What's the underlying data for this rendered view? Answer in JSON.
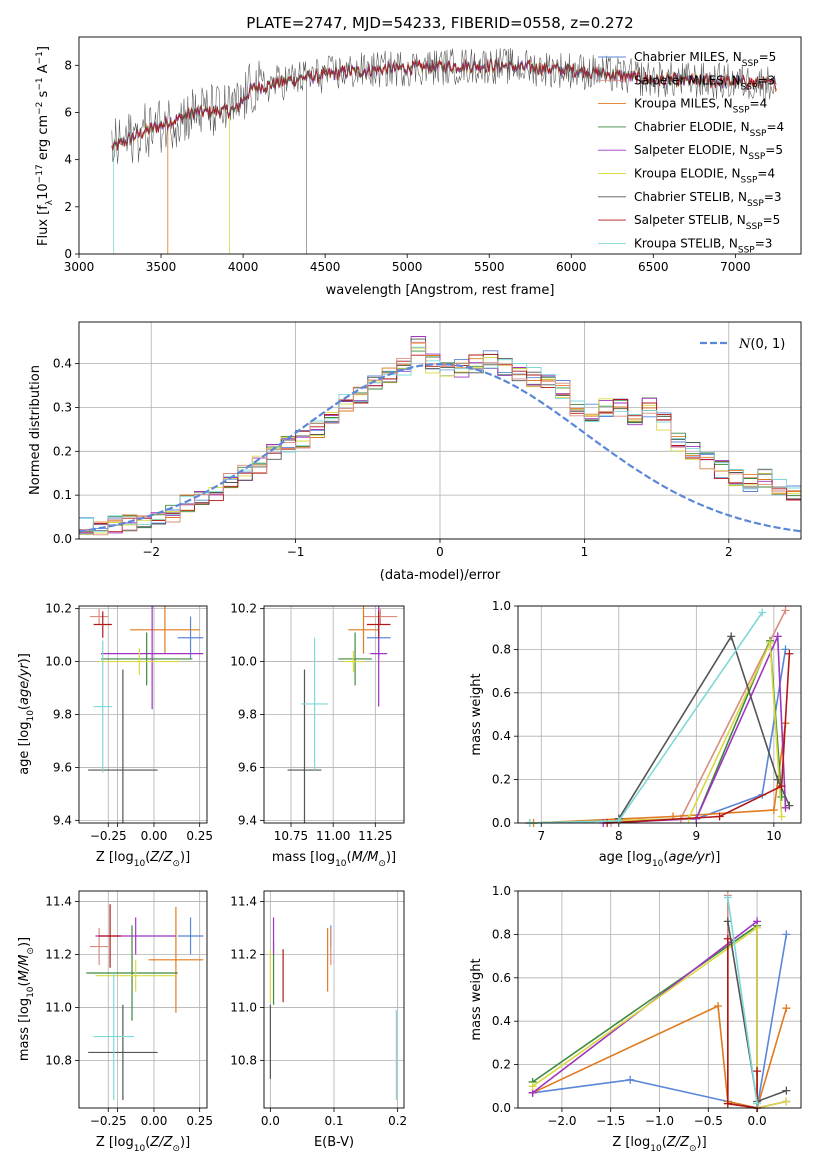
{
  "colors": {
    "chabrier_miles": "#5b87d8",
    "salpeter_miles": "#d98d80",
    "kroupa_miles": "#e07a1f",
    "chabrier_elodie": "#3d8a3d",
    "salpeter_elodie": "#a035c2",
    "kroupa_elodie": "#d9d941",
    "chabrier_stelib": "#555555",
    "salpeter_stelib": "#b01818",
    "kroupa_stelib": "#7fd8d8",
    "gaussian": "#5b87d8"
  },
  "chart_data": [
    {
      "id": "spectrum",
      "type": "line",
      "title": "PLATE=2747, MJD=54233, FIBERID=0558, z=0.272",
      "xlabel": "wavelength [Angstrom, rest frame]",
      "ylabel_parts": {
        "pre": "Flux [f",
        "sub": "λ",
        "mid": "10",
        "sup1": "−17",
        "post": " erg cm",
        "sup2": "−2",
        "mid2": " s",
        "sup3": "−1",
        "end": " A",
        "sup4": "−1",
        "close": "]"
      },
      "xlim": [
        3000,
        7400
      ],
      "ylim": [
        0,
        9.2
      ],
      "xticks": [
        3000,
        3500,
        4000,
        4500,
        5000,
        5500,
        6000,
        6500,
        7000
      ],
      "yticks": [
        0,
        2,
        4,
        6,
        8
      ],
      "grid": false,
      "legend": "top-right",
      "legend_entries": [
        {
          "label": "Chabrier MILES, N",
          "sub": "SSP",
          "val": "=5",
          "color_key": "chabrier_miles"
        },
        {
          "label": "Salpeter MILES, N",
          "sub": "SSP",
          "val": "=3",
          "color_key": "salpeter_miles"
        },
        {
          "label": "Kroupa MILES, N",
          "sub": "SSP",
          "val": "=4",
          "color_key": "kroupa_miles"
        },
        {
          "label": "Chabrier ELODIE, N",
          "sub": "SSP",
          "val": "=4",
          "color_key": "chabrier_elodie"
        },
        {
          "label": "Salpeter ELODIE, N",
          "sub": "SSP",
          "val": "=5",
          "color_key": "salpeter_elodie"
        },
        {
          "label": "Kroupa ELODIE, N",
          "sub": "SSP",
          "val": "=4",
          "color_key": "kroupa_elodie"
        },
        {
          "label": "Chabrier STELIB, N",
          "sub": "SSP",
          "val": "=3",
          "color_key": "chabrier_stelib"
        },
        {
          "label": "Salpeter STELIB, N",
          "sub": "SSP",
          "val": "=5",
          "color_key": "salpeter_stelib"
        },
        {
          "label": "Kroupa STELIB, N",
          "sub": "SSP",
          "val": "=3",
          "color_key": "kroupa_stelib"
        }
      ],
      "data_range": {
        "start": 3200,
        "end": 7250
      },
      "continuum": [
        [
          3200,
          4.5
        ],
        [
          3400,
          5.2
        ],
        [
          3700,
          6.0
        ],
        [
          3950,
          6.1
        ],
        [
          4050,
          7.0
        ],
        [
          4300,
          7.4
        ],
        [
          4600,
          7.7
        ],
        [
          5000,
          7.9
        ],
        [
          5500,
          8.0
        ],
        [
          6000,
          7.8
        ],
        [
          6500,
          7.4
        ],
        [
          7000,
          7.3
        ],
        [
          7250,
          7.2
        ]
      ],
      "dropouts": [
        {
          "series": "kroupa_stelib",
          "x": 3210
        },
        {
          "series": "kroupa_miles",
          "x": 3540
        },
        {
          "series": "kroupa_elodie",
          "x": 3915
        },
        {
          "series": "chabrier_stelib",
          "x": 4385
        },
        {
          "series": "kroupa_elodie",
          "x": 6790
        }
      ]
    },
    {
      "id": "residuals",
      "type": "histogram",
      "xlabel": "(data-model)/error",
      "ylabel": "Normed distribution",
      "xlim": [
        -2.5,
        2.5
      ],
      "ylim": [
        0,
        0.495
      ],
      "xticks": [
        -2,
        -1,
        0,
        1,
        2
      ],
      "yticks": [
        0.0,
        0.1,
        0.2,
        0.3,
        0.4
      ],
      "grid": true,
      "legend": "top-right",
      "legend_label": "N(0,1)",
      "bin_width": 0.1,
      "bin_start": -2.5,
      "base_heights": [
        0.03,
        0.03,
        0.035,
        0.04,
        0.045,
        0.05,
        0.06,
        0.08,
        0.09,
        0.11,
        0.13,
        0.15,
        0.17,
        0.2,
        0.22,
        0.23,
        0.25,
        0.27,
        0.31,
        0.33,
        0.35,
        0.37,
        0.39,
        0.44,
        0.4,
        0.38,
        0.39,
        0.4,
        0.41,
        0.39,
        0.38,
        0.37,
        0.36,
        0.34,
        0.3,
        0.29,
        0.3,
        0.3,
        0.28,
        0.3,
        0.27,
        0.22,
        0.2,
        0.18,
        0.16,
        0.14,
        0.13,
        0.14,
        0.12,
        0.11,
        0.09
      ]
    },
    {
      "id": "age_vs_Z",
      "type": "errorbar",
      "xlabel": "Z [log10(Z/Z⊙)]",
      "ylabel": "age  [log10(age/yr)]",
      "xlim": [
        -0.41,
        0.29
      ],
      "ylim": [
        9.39,
        10.21
      ],
      "xticks": [
        -0.25,
        -0.2,
        0.0,
        0.25
      ],
      "xticklabels": [
        "−0.25",
        "",
        "0.00",
        "0.25"
      ],
      "ytick_values": [
        9.4,
        9.6,
        9.8,
        10.0,
        10.2
      ],
      "grid": true,
      "points": [
        {
          "s": "chabrier_miles",
          "x": 0.2,
          "xe": 0.07,
          "y": 10.09,
          "ye": 0.08
        },
        {
          "s": "salpeter_miles",
          "x": -0.3,
          "xe": 0.05,
          "y": 10.17,
          "ye": 0.03
        },
        {
          "s": "kroupa_miles",
          "x": 0.06,
          "xe": 0.19,
          "y": 10.12,
          "ye": 0.09
        },
        {
          "s": "chabrier_elodie",
          "x": -0.04,
          "xe": 0.25,
          "y": 10.01,
          "ye": 0.1
        },
        {
          "s": "salpeter_elodie",
          "x": -0.01,
          "xe": 0.28,
          "y": 10.03,
          "ye": 0.21
        },
        {
          "s": "kroupa_elodie",
          "x": -0.08,
          "xe": 0.22,
          "y": 10.0,
          "ye": 0.05
        },
        {
          "s": "chabrier_stelib",
          "x": -0.17,
          "xe": 0.19,
          "y": 9.59,
          "ye": 0.38
        },
        {
          "s": "salpeter_stelib",
          "x": -0.28,
          "xe": 0.05,
          "y": 10.14,
          "ye": 0.05
        },
        {
          "s": "kroupa_stelib",
          "x": -0.28,
          "xe": 0.05,
          "y": 9.83,
          "ye": 0.25
        }
      ]
    },
    {
      "id": "age_vs_mass",
      "type": "errorbar",
      "xlabel": "mass [log10(M/M⊙)]",
      "ylabel": "",
      "xlim": [
        10.59,
        11.42
      ],
      "ylim": [
        9.39,
        10.21
      ],
      "xticks": [
        10.75,
        11.0,
        11.25
      ],
      "xticklabels": [
        "10.75",
        "11.00",
        "11.25"
      ],
      "ytick_values": [
        9.4,
        9.6,
        9.8,
        10.0,
        10.2
      ],
      "grid": true,
      "points": [
        {
          "s": "chabrier_miles",
          "x": 11.27,
          "xe": 0.07,
          "y": 10.09,
          "ye": 0.07
        },
        {
          "s": "salpeter_miles",
          "x": 11.28,
          "xe": 0.1,
          "y": 10.17,
          "ye": 0.03
        },
        {
          "s": "kroupa_miles",
          "x": 11.18,
          "xe": 0.09,
          "y": 10.12,
          "ye": 0.09
        },
        {
          "s": "chabrier_elodie",
          "x": 11.13,
          "xe": 0.1,
          "y": 10.01,
          "ye": 0.1
        },
        {
          "s": "salpeter_elodie",
          "x": 11.27,
          "xe": 0.05,
          "y": 10.03,
          "ye": 0.2
        },
        {
          "s": "kroupa_elodie",
          "x": 11.12,
          "xe": 0.06,
          "y": 10.0,
          "ye": 0.04
        },
        {
          "s": "chabrier_stelib",
          "x": 10.83,
          "xe": 0.1,
          "y": 9.59,
          "ye": 0.38
        },
        {
          "s": "salpeter_stelib",
          "x": 11.27,
          "xe": 0.07,
          "y": 10.14,
          "ye": 0.05
        },
        {
          "s": "kroupa_stelib",
          "x": 10.89,
          "xe": 0.08,
          "y": 9.84,
          "ye": 0.25
        }
      ]
    },
    {
      "id": "weight_vs_age",
      "type": "line",
      "xlabel": "age  [log10(age/yr)]",
      "ylabel": "mass weight",
      "xlim": [
        6.7,
        10.35
      ],
      "ylim": [
        0,
        1.0
      ],
      "xticks": [
        7,
        8,
        9,
        10
      ],
      "yticks": [
        0.0,
        0.2,
        0.4,
        0.6,
        0.8,
        1.0
      ],
      "grid": true,
      "series": [
        {
          "s": "chabrier_miles",
          "x": [
            6.85,
            9.0,
            9.85,
            10.15
          ],
          "y": [
            0.0,
            0.02,
            0.13,
            0.8
          ]
        },
        {
          "s": "salpeter_miles",
          "x": [
            7.9,
            8.8,
            10.15
          ],
          "y": [
            0.0,
            0.02,
            0.98
          ]
        },
        {
          "s": "kroupa_miles",
          "x": [
            6.9,
            8.7,
            10.0,
            10.15
          ],
          "y": [
            0.0,
            0.03,
            0.06,
            0.46
          ]
        },
        {
          "s": "chabrier_elodie",
          "x": [
            6.85,
            9.0,
            9.95,
            10.1
          ],
          "y": [
            0.0,
            0.02,
            0.84,
            0.12
          ]
        },
        {
          "s": "salpeter_elodie",
          "x": [
            7.8,
            9.0,
            10.05,
            10.15
          ],
          "y": [
            0.0,
            0.02,
            0.86,
            0.07
          ]
        },
        {
          "s": "kroupa_elodie",
          "x": [
            6.85,
            8.9,
            9.95,
            10.1
          ],
          "y": [
            0.0,
            0.02,
            0.83,
            0.03
          ]
        },
        {
          "s": "chabrier_stelib",
          "x": [
            8.0,
            9.45,
            10.05,
            10.2
          ],
          "y": [
            0.02,
            0.86,
            0.2,
            0.08
          ]
        },
        {
          "s": "salpeter_stelib",
          "x": [
            7.85,
            9.3,
            10.1,
            10.2
          ],
          "y": [
            0.0,
            0.03,
            0.17,
            0.78
          ]
        },
        {
          "s": "kroupa_stelib",
          "x": [
            6.85,
            8.0,
            9.85
          ],
          "y": [
            0.0,
            0.01,
            0.97
          ]
        }
      ]
    },
    {
      "id": "mass_vs_Z",
      "type": "errorbar",
      "xlabel": "Z [log10(Z/Z⊙)]",
      "ylabel": "mass [log10(M/M⊙)]",
      "xlim": [
        -0.41,
        0.29
      ],
      "ylim": [
        10.62,
        11.44
      ],
      "xticks": [
        -0.25,
        -0.2,
        0.0,
        0.25
      ],
      "xticklabels": [
        "−0.25",
        "",
        "0.00",
        "0.25"
      ],
      "ytick_values": [
        10.8,
        11.0,
        11.2,
        11.4
      ],
      "grid": true,
      "points": [
        {
          "s": "chabrier_miles",
          "x": 0.2,
          "xe": 0.07,
          "y": 11.27,
          "ye": 0.07
        },
        {
          "s": "salpeter_miles",
          "x": -0.3,
          "xe": 0.05,
          "y": 11.23,
          "ye": 0.07
        },
        {
          "s": "kroupa_miles",
          "x": 0.12,
          "xe": 0.15,
          "y": 11.18,
          "ye": 0.2
        },
        {
          "s": "chabrier_elodie",
          "x": -0.12,
          "xe": 0.25,
          "y": 11.13,
          "ye": 0.18
        },
        {
          "s": "salpeter_elodie",
          "x": -0.1,
          "xe": 0.22,
          "y": 11.27,
          "ye": 0.07
        },
        {
          "s": "kroupa_elodie",
          "x": -0.1,
          "xe": 0.22,
          "y": 11.12,
          "ye": 0.06
        },
        {
          "s": "chabrier_stelib",
          "x": -0.17,
          "xe": 0.19,
          "y": 10.83,
          "ye": 0.18
        },
        {
          "s": "salpeter_stelib",
          "x": -0.24,
          "xe": 0.06,
          "y": 11.27,
          "ye": 0.12
        },
        {
          "s": "kroupa_stelib",
          "x": -0.22,
          "xe": 0.11,
          "y": 10.89,
          "ye": 0.24
        }
      ]
    },
    {
      "id": "mass_vs_ebv",
      "type": "errorbar",
      "xlabel": "E(B-V)",
      "ylabel": "",
      "xlim": [
        -0.01,
        0.21
      ],
      "ylim": [
        10.62,
        11.44
      ],
      "xticks": [
        0.0,
        0.1,
        0.2
      ],
      "xticklabels": [
        "0.0",
        "0.1",
        "0.2"
      ],
      "ytick_values": [
        10.8,
        11.0,
        11.2,
        11.4
      ],
      "grid": true,
      "points": [
        {
          "s": "chabrier_miles",
          "x": 0.095,
          "xe": 0.0,
          "y": 11.27,
          "ye": 0.04
        },
        {
          "s": "salpeter_miles",
          "x": 0.095,
          "xe": 0.0,
          "y": 11.23,
          "ye": 0.07
        },
        {
          "s": "kroupa_miles",
          "x": 0.09,
          "xe": 0.0,
          "y": 11.18,
          "ye": 0.12
        },
        {
          "s": "chabrier_elodie",
          "x": 0.005,
          "xe": 0.0,
          "y": 11.13,
          "ye": 0.12
        },
        {
          "s": "salpeter_elodie",
          "x": 0.005,
          "xe": 0.0,
          "y": 11.27,
          "ye": 0.07
        },
        {
          "s": "kroupa_elodie",
          "x": 0.0,
          "xe": 0.0,
          "y": 11.12,
          "ye": 0.1
        },
        {
          "s": "chabrier_stelib",
          "x": 0.0,
          "xe": 0.0,
          "y": 10.87,
          "ye": 0.14
        },
        {
          "s": "salpeter_stelib",
          "x": 0.02,
          "xe": 0.0,
          "y": 11.12,
          "ye": 0.1
        },
        {
          "s": "kroupa_stelib",
          "x": 0.198,
          "xe": 0.0,
          "y": 10.82,
          "ye": 0.17
        }
      ]
    },
    {
      "id": "weight_vs_Z",
      "type": "line",
      "xlabel": "Z [log10(Z/Z⊙)]",
      "ylabel": "mass weight",
      "xlim": [
        -2.45,
        0.45
      ],
      "ylim": [
        0,
        1.0
      ],
      "xticks": [
        -2.0,
        -1.5,
        -1.0,
        -0.5,
        0.0
      ],
      "yticks": [
        0.0,
        0.2,
        0.4,
        0.6,
        0.8,
        1.0
      ],
      "grid": true,
      "series": [
        {
          "s": "chabrier_miles",
          "x": [
            -2.3,
            -1.3,
            -0.3,
            0.0,
            0.3
          ],
          "y": [
            0.07,
            0.13,
            0.03,
            0.0,
            0.8
          ]
        },
        {
          "s": "salpeter_miles",
          "x": [
            -0.3,
            -0.3,
            0.0
          ],
          "y": [
            0.98,
            0.02,
            0.0
          ]
        },
        {
          "s": "kroupa_miles",
          "x": [
            -2.3,
            -0.4,
            -0.3,
            0.0,
            0.3
          ],
          "y": [
            0.07,
            0.47,
            0.03,
            0.0,
            0.46
          ]
        },
        {
          "s": "chabrier_elodie",
          "x": [
            -2.3,
            0.0,
            0.0
          ],
          "y": [
            0.12,
            0.84,
            0.0
          ]
        },
        {
          "s": "salpeter_elodie",
          "x": [
            -2.3,
            0.0,
            0.0,
            0.3
          ],
          "y": [
            0.07,
            0.86,
            0.0,
            0.03
          ]
        },
        {
          "s": "kroupa_elodie",
          "x": [
            -2.3,
            0.0,
            0.0,
            0.3
          ],
          "y": [
            0.1,
            0.83,
            0.0,
            0.03
          ]
        },
        {
          "s": "chabrier_stelib",
          "x": [
            -0.3,
            0.0,
            0.3
          ],
          "y": [
            0.86,
            0.03,
            0.08
          ]
        },
        {
          "s": "salpeter_stelib",
          "x": [
            -0.3,
            -0.3,
            0.0,
            0.0
          ],
          "y": [
            0.78,
            0.02,
            0.0,
            0.17
          ]
        },
        {
          "s": "kroupa_stelib",
          "x": [
            -0.3,
            0.0
          ],
          "y": [
            0.97,
            0.02
          ]
        }
      ]
    }
  ]
}
